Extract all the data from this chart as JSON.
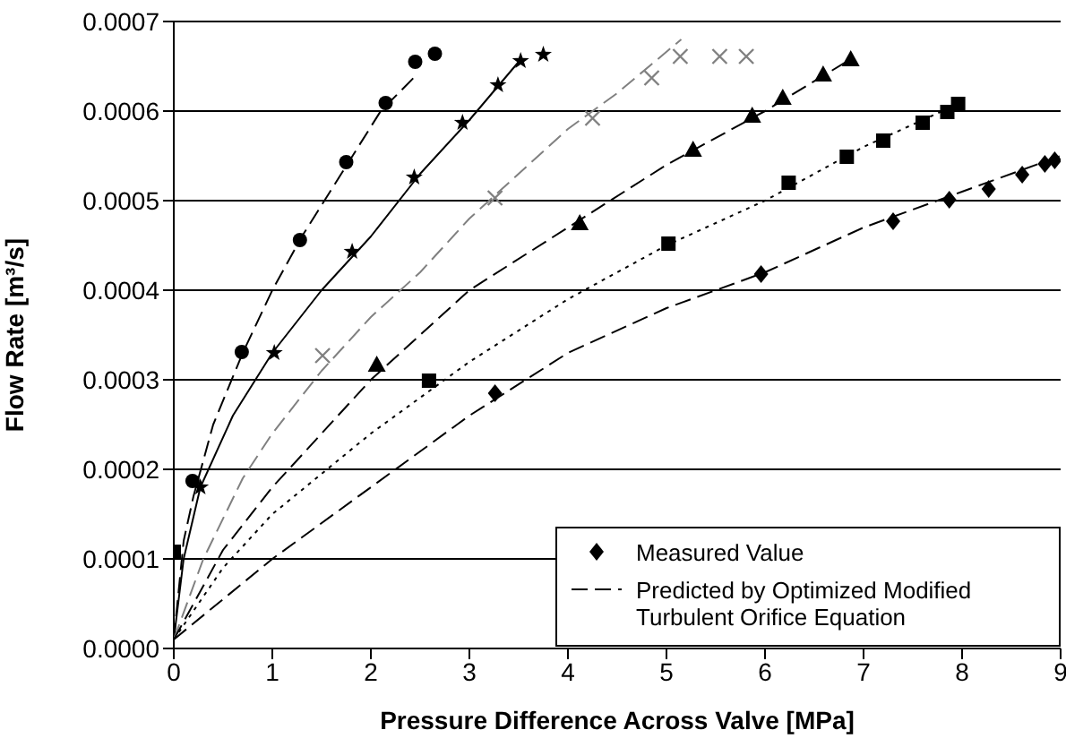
{
  "chart_data": {
    "type": "scatter",
    "xlabel": "Pressure Difference Across Valve [MPa]",
    "ylabel": "Flow Rate [m³/s]",
    "xlim": [
      0,
      9
    ],
    "xticks": [
      0,
      1,
      2,
      3,
      4,
      5,
      6,
      7,
      8,
      9
    ],
    "ylim": [
      0,
      0.0007
    ],
    "yticks": [
      {
        "value": 0,
        "label": "0.0000"
      },
      {
        "value": 0.0001,
        "label": "0.0001"
      },
      {
        "value": 0.0002,
        "label": "0.0002"
      },
      {
        "value": 0.0003,
        "label": "0.0003"
      },
      {
        "value": 0.0004,
        "label": "0.0004"
      },
      {
        "value": 0.0005,
        "label": "0.0005"
      },
      {
        "value": 0.0006,
        "label": "0.0006"
      },
      {
        "value": 0.0007,
        "label": "0.0007"
      }
    ],
    "grid": "y",
    "legend": "bottom right",
    "series": [
      {
        "name": "Measured Value",
        "marker": "diamond",
        "color": "#000000",
        "x": [
          3.26,
          5.96,
          7.3,
          7.87,
          8.27,
          8.61,
          8.84,
          8.94
        ],
        "values": [
          0.000285,
          0.000418,
          0.000477,
          0.000501,
          0.000513,
          0.000529,
          0.000541,
          0.000545
        ]
      },
      {
        "name": "Predicted by Optimized Modified Turbulent Orifice Equation",
        "type": "line",
        "marker": "none",
        "line_style": "dashed",
        "color": "#000000",
        "x": [
          0,
          1,
          2,
          3,
          4,
          5,
          6,
          7,
          8,
          9
        ],
        "values": [
          1e-05,
          0.0001,
          0.00018,
          0.00026,
          0.00033,
          0.00038,
          0.00042,
          0.00047,
          0.00051,
          0.00055
        ]
      },
      {
        "marker": "circle",
        "color": "#000000",
        "x": [
          0.19,
          0.69,
          1.28,
          1.75,
          2.15,
          2.45,
          2.65
        ],
        "values": [
          0.000187,
          0.000331,
          0.000456,
          0.000543,
          0.000609,
          0.000655,
          0.000664
        ]
      },
      {
        "type": "line",
        "marker": "none",
        "line_style": "dashed",
        "color": "#000000",
        "x": [
          0,
          0.1,
          0.2,
          0.4,
          0.7,
          1.0,
          1.3,
          1.7,
          2.1,
          2.46
        ],
        "values": [
          1e-05,
          0.00012,
          0.00017,
          0.00025,
          0.00033,
          0.0004,
          0.00046,
          0.00053,
          0.0006,
          0.00064
        ]
      },
      {
        "marker": "star",
        "color": "#000000",
        "x": [
          0.27,
          1.02,
          1.81,
          2.44,
          2.93,
          3.29,
          3.52,
          3.75
        ],
        "values": [
          0.00018,
          0.00033,
          0.000443,
          0.000526,
          0.000587,
          0.000629,
          0.000656,
          0.000663
        ]
      },
      {
        "type": "line",
        "marker": "none",
        "line_style": "solid",
        "color": "#000000",
        "x": [
          0,
          0.1,
          0.27,
          0.6,
          1.0,
          1.5,
          2.0,
          2.5,
          3.0,
          3.5
        ],
        "values": [
          1e-05,
          0.0001,
          0.00018,
          0.00026,
          0.00033,
          0.0004,
          0.00046,
          0.00053,
          0.00059,
          0.000655
        ]
      },
      {
        "marker": "cross",
        "color": "#808080",
        "x": [
          1.51,
          3.26,
          4.25,
          4.85,
          5.14,
          5.54,
          5.81
        ],
        "values": [
          0.000327,
          0.000503,
          0.000592,
          0.000637,
          0.000661,
          0.000661,
          0.000661
        ]
      },
      {
        "type": "line",
        "marker": "none",
        "line_style": "dashed",
        "color": "#808080",
        "x": [
          0,
          0.3,
          0.7,
          1.0,
          1.5,
          2.0,
          2.5,
          3.0,
          3.5,
          4.0,
          4.5,
          5.15
        ],
        "values": [
          1e-05,
          0.0001,
          0.00019,
          0.00024,
          0.00031,
          0.00037,
          0.00042,
          0.00048,
          0.00053,
          0.00058,
          0.00062,
          0.00068
        ]
      },
      {
        "marker": "triangle",
        "color": "#000000",
        "x": [
          2.06,
          4.12,
          5.27,
          5.87,
          6.18,
          6.59,
          6.87
        ],
        "values": [
          0.000317,
          0.000475,
          0.000557,
          0.000595,
          0.000615,
          0.000641,
          0.000658
        ]
      },
      {
        "type": "line",
        "marker": "none",
        "line_style": "dashed",
        "color": "#000000",
        "x": [
          0,
          0.5,
          1,
          2,
          3,
          4,
          5,
          6,
          6.9
        ],
        "values": [
          1e-05,
          0.00011,
          0.00018,
          0.0003,
          0.0004,
          0.00047,
          0.00054,
          0.0006,
          0.00066
        ]
      },
      {
        "marker": "square",
        "color": "#000000",
        "x": [
          0,
          2.59,
          5.02,
          6.24,
          6.83,
          7.2,
          7.6,
          7.85,
          7.96
        ],
        "values": [
          0.000108,
          0.000299,
          0.000452,
          0.00052,
          0.000549,
          0.000567,
          0.000587,
          0.000599,
          0.000608
        ]
      },
      {
        "type": "line",
        "marker": "none",
        "line_style": "dotted",
        "color": "#000000",
        "x": [
          0,
          0.5,
          1,
          2,
          3,
          4,
          5,
          6,
          7,
          8
        ],
        "values": [
          1e-05,
          9e-05,
          0.00015,
          0.00024,
          0.00032,
          0.00039,
          0.00045,
          0.0005,
          0.00056,
          0.00061
        ]
      }
    ]
  }
}
